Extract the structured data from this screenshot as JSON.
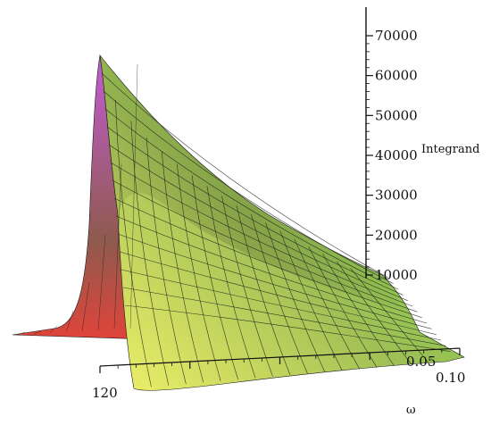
{
  "chart_data": {
    "type": "surface3d",
    "title": "",
    "zlabel": "Integrand",
    "xlabel": "ω",
    "ylabel": "",
    "zlim": [
      0,
      75000
    ],
    "z_ticks": [
      10000,
      20000,
      30000,
      40000,
      50000,
      60000,
      70000
    ],
    "z_tick_labels": [
      "10000",
      "20000",
      "30000",
      "40000",
      "50000",
      "60000",
      "70000"
    ],
    "omega_ticks": [
      0.05,
      0.1
    ],
    "omega_tick_labels": [
      "0.05",
      "0.10"
    ],
    "depth_ticks": [
      120
    ],
    "depth_tick_labels": [
      "120"
    ],
    "omega_range": [
      0,
      0.1
    ],
    "peak_value": 65000,
    "far_edge_value": 9500,
    "colormap": [
      "#e0443a",
      "#8f5a4e",
      "#c25cd2",
      "#f2f26a",
      "#64e04a"
    ],
    "mesh_color": "#1a1a1a"
  }
}
